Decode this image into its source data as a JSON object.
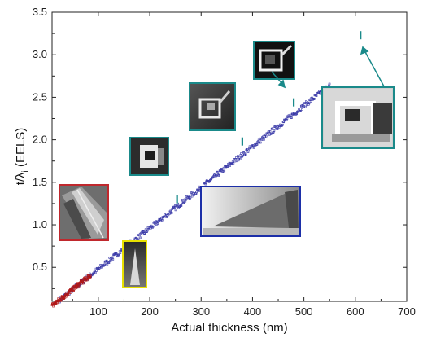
{
  "chart_data": {
    "type": "scatter",
    "xlabel": "Actual thickness (nm)",
    "ylabel_main": "t/λ",
    "ylabel_sub": "i",
    "ylabel_tail": " (EELS)",
    "xlim": [
      10,
      700
    ],
    "ylim": [
      0.1,
      3.5
    ],
    "x_ticks": [
      "100",
      "200",
      "300",
      "400",
      "500",
      "600",
      "700"
    ],
    "y_ticks": [
      "0.5",
      "1.0",
      "1.5",
      "2.0",
      "2.5",
      "3.0",
      "3.5"
    ],
    "grid": false,
    "series": [
      {
        "color": "#3a3aa8",
        "marker": "small-open-square",
        "x_range": [
          25,
          550
        ],
        "linear_fit": {
          "slope": 0.0048,
          "intercept": 0.0
        }
      },
      {
        "color": "#b01818",
        "marker": "small-open-square",
        "x_range": [
          10,
          85
        ],
        "linear_fit": {
          "slope": 0.0048,
          "intercept": 0.0
        }
      },
      {
        "color": "#1a8a8a",
        "marker": "vertical-bar",
        "points": [
          {
            "x": 253,
            "y": 1.3
          },
          {
            "x": 380,
            "y": 1.98
          },
          {
            "x": 480,
            "y": 2.44
          },
          {
            "x": 610,
            "y": 3.23
          }
        ]
      }
    ],
    "insets": [
      {
        "name": "red-inset",
        "frame_color": "#c0282d",
        "image": "sem-micrograph-lamella"
      },
      {
        "name": "yellow-inset",
        "frame_color": "#e8e000",
        "image": "sem-micrograph-wedge-tip"
      },
      {
        "name": "teal-inset-1",
        "frame_color": "#1a8a8a",
        "image": "sem-micrograph-sample"
      },
      {
        "name": "teal-inset-2",
        "frame_color": "#1a8a8a",
        "image": "sem-micrograph-sample"
      },
      {
        "name": "teal-inset-3",
        "frame_color": "#1a8a8a",
        "image": "sem-micrograph-sample"
      },
      {
        "name": "teal-inset-4",
        "frame_color": "#1a8a8a",
        "image": "sem-micrograph-sample-large"
      },
      {
        "name": "blue-inset",
        "frame_color": "#1c2fa8",
        "image": "sem-micrograph-wedge"
      }
    ]
  }
}
